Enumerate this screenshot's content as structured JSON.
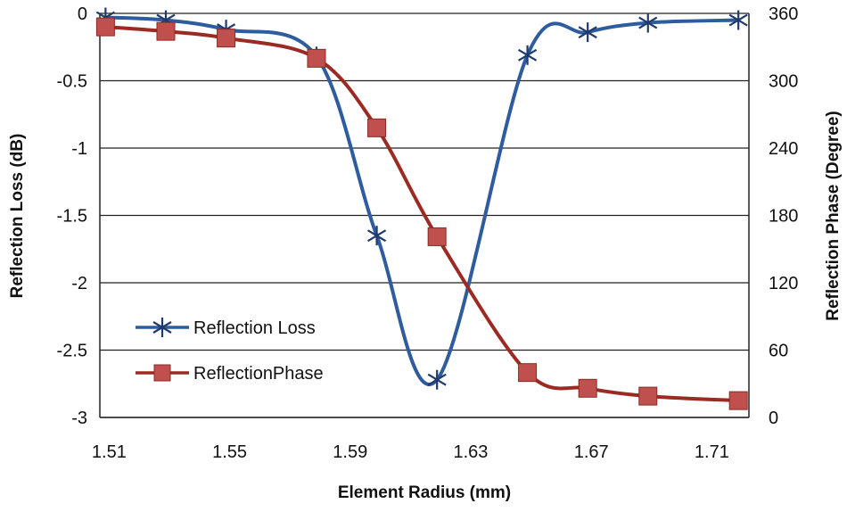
{
  "chart_data": {
    "type": "line",
    "xlabel": "Element Radius (mm)",
    "ylabel": "Reflection Loss (dB)",
    "y2label": "Reflection Phase (Degree)",
    "x": [
      1.51,
      1.53,
      1.55,
      1.58,
      1.6,
      1.62,
      1.65,
      1.67,
      1.69,
      1.72
    ],
    "xticks": [
      "1.51",
      "1.55",
      "1.59",
      "1.63",
      "1.67",
      "1.71"
    ],
    "xlim": [
      1.509,
      1.7235
    ],
    "yticks": [
      "0",
      "-0.5",
      "-1",
      "-1.5",
      "-2",
      "-2.5",
      "-3"
    ],
    "ylim": [
      -3,
      0
    ],
    "y2ticks": [
      "360",
      "300",
      "240",
      "180",
      "120",
      "60",
      "0"
    ],
    "y2lim": [
      0,
      360
    ],
    "grid": "horizontal",
    "legend": "bottom-left",
    "series": [
      {
        "name": "Reflection Loss",
        "axis": "left",
        "marker": "asterisk",
        "color": "#2e5c9e",
        "values": [
          -0.03,
          -0.05,
          -0.12,
          -0.32,
          -1.65,
          -2.72,
          -0.31,
          -0.14,
          -0.07,
          -0.05
        ]
      },
      {
        "name": "ReflectionPhase",
        "axis": "right",
        "marker": "square",
        "color": "#9b2a22",
        "values": [
          348,
          344,
          338,
          320,
          258,
          161,
          40,
          26,
          19,
          15
        ]
      }
    ]
  }
}
